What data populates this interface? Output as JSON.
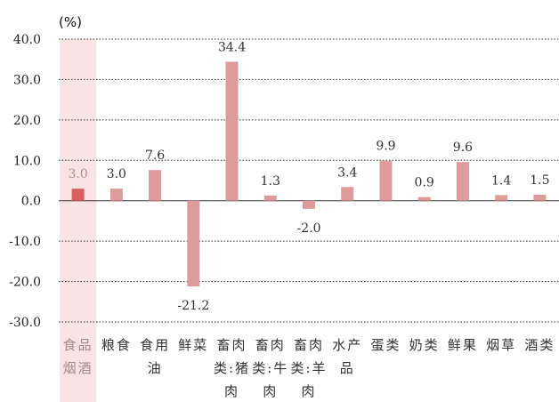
{
  "chart_data": {
    "type": "bar",
    "title": "",
    "ylabel": "(%)",
    "ylim": [
      -30,
      40
    ],
    "yticks": [
      "40.0",
      "30.0",
      "20.0",
      "10.0",
      "0.0",
      "-10.0",
      "-20.0",
      "-30.0"
    ],
    "grid": true,
    "categories": [
      [
        "食品",
        "烟酒"
      ],
      [
        "粮食"
      ],
      [
        "食用",
        "油"
      ],
      [
        "鲜菜"
      ],
      [
        "畜肉",
        "类:猪",
        "肉"
      ],
      [
        "畜肉",
        "类:牛",
        "肉"
      ],
      [
        "畜肉",
        "类:羊",
        "肉"
      ],
      [
        "水产",
        "品"
      ],
      [
        "蛋类"
      ],
      [
        "奶类"
      ],
      [
        "鲜果"
      ],
      [
        "烟草"
      ],
      [
        "酒类"
      ]
    ],
    "values": [
      3.0,
      3.0,
      7.6,
      -21.2,
      34.4,
      1.3,
      -2.0,
      3.4,
      9.9,
      0.9,
      9.6,
      1.4,
      1.5
    ],
    "value_labels": [
      "3.0",
      "3.0",
      "7.6",
      "-21.2",
      "34.4",
      "1.3",
      "-2.0",
      "3.4",
      "9.9",
      "0.9",
      "9.6",
      "1.4",
      "1.5"
    ],
    "highlight_index": 0,
    "colors": {
      "bar": "#dd9b9b",
      "bar_highlight": "#d9605f",
      "highlight_band": "#f7e4e3",
      "grid": "#333333"
    }
  }
}
